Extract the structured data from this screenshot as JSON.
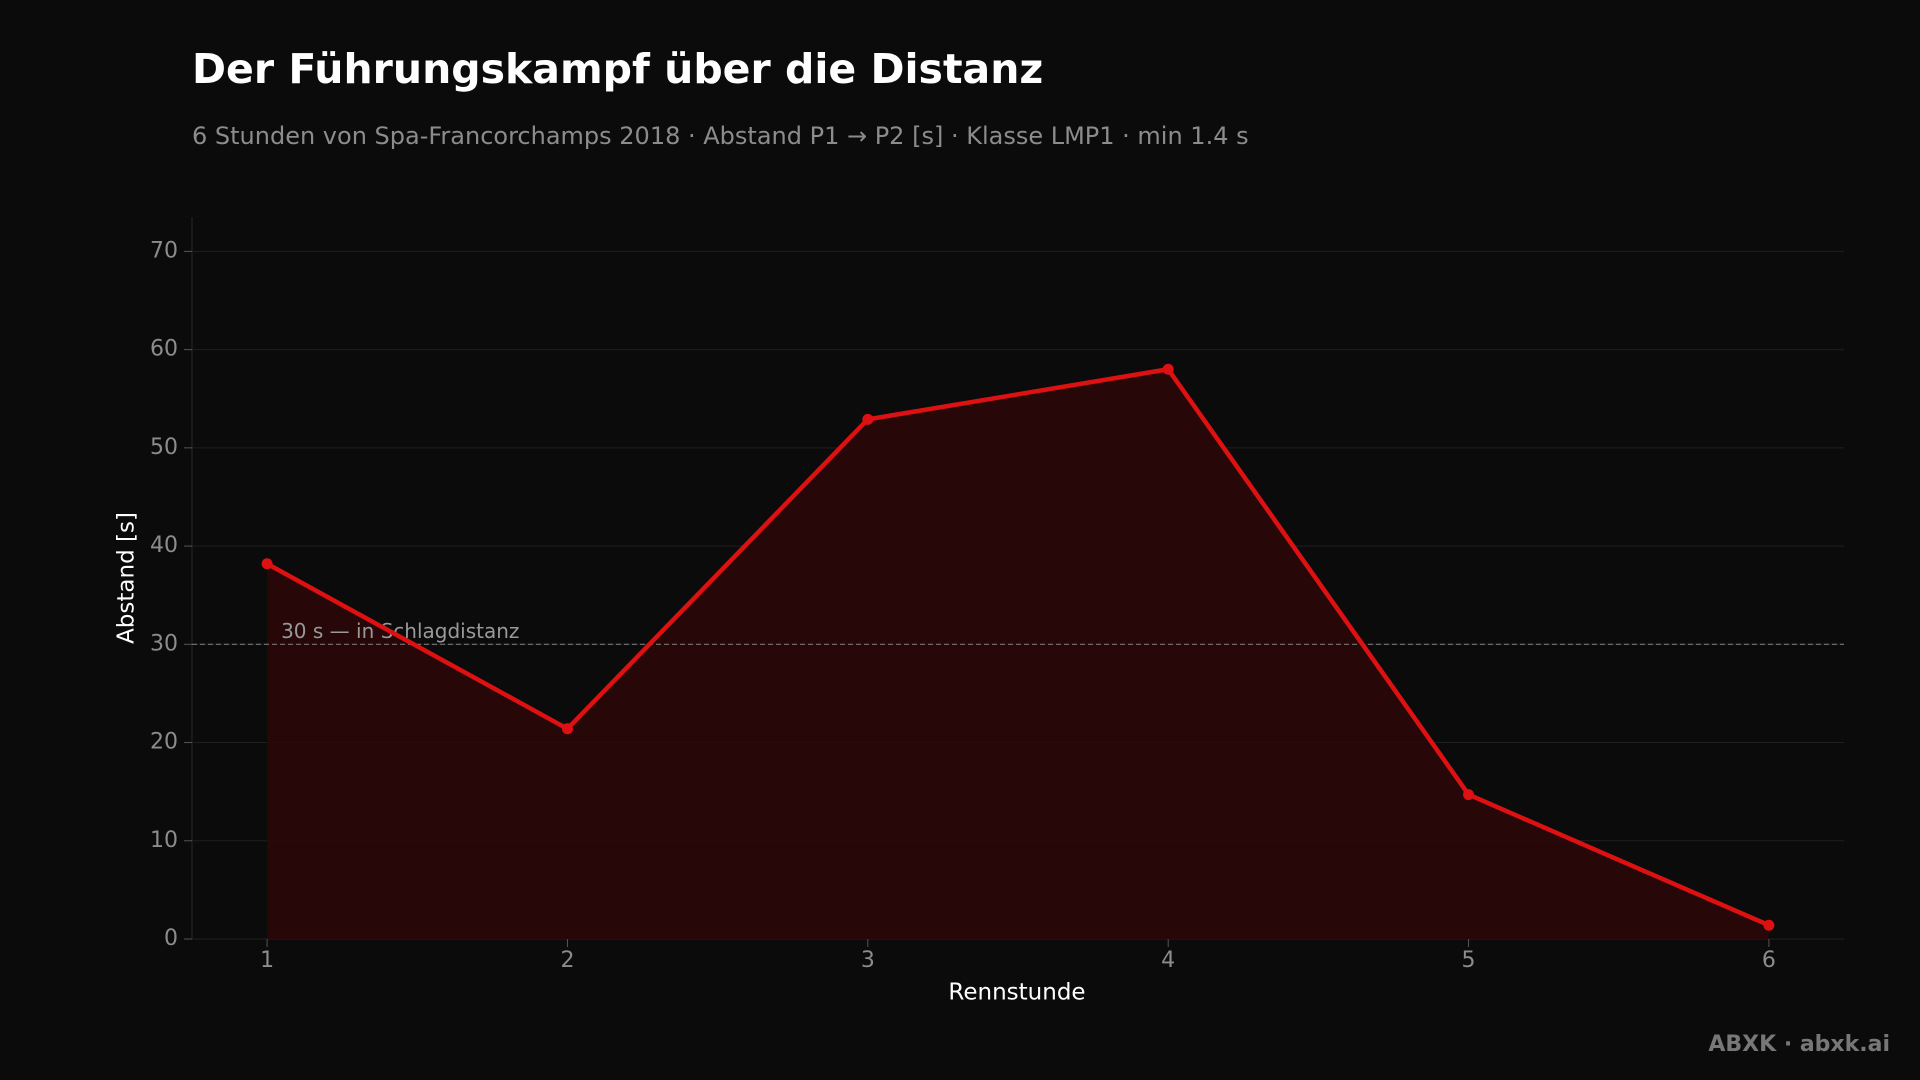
{
  "chart_data": {
    "type": "line",
    "title": "Der Führungskampf über die Distanz",
    "subtitle": "6 Stunden von Spa-Francorchamps 2018 · Abstand P1 → P2 [s] · Klasse LMP1 · min 1.4 s",
    "xlabel": "Rennstunde",
    "ylabel": "Abstand [s]",
    "x": [
      1,
      2,
      3,
      4,
      5,
      6
    ],
    "values": [
      38.2,
      21.4,
      52.9,
      58.0,
      14.7,
      1.4
    ],
    "color": "#dd1111",
    "area_color": "#2a0708",
    "xlim": [
      0.75,
      6.25
    ],
    "ylim": [
      0,
      73.5
    ],
    "xticks": [
      1,
      2,
      3,
      4,
      5,
      6
    ],
    "yticks": [
      0,
      10,
      20,
      30,
      40,
      50,
      60,
      70
    ],
    "grid": true,
    "reference_line": {
      "value": 30,
      "label": "30 s — in Schlagdistanz"
    },
    "footer": "ABXK · abxk.ai"
  }
}
